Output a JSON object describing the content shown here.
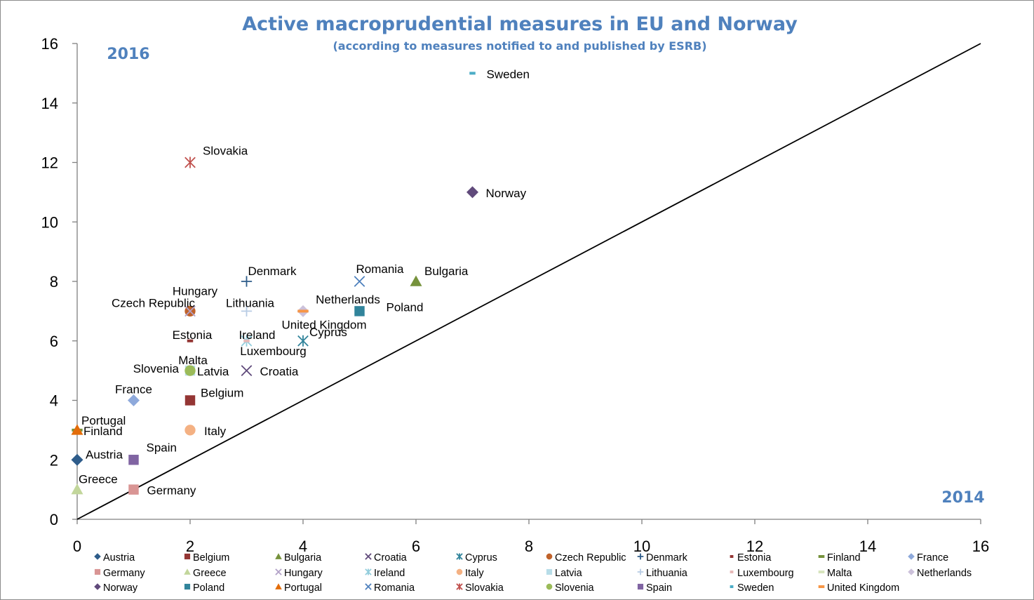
{
  "chart_data": {
    "type": "scatter",
    "title": "Active macroprudential measures in EU and Norway",
    "subtitle": "(according to measures notified to and published by ESRB)",
    "xlabel": "2014",
    "ylabel": "2016",
    "xlim": [
      0,
      16
    ],
    "ylim": [
      0,
      16
    ],
    "x_ticks": [
      "0",
      "2",
      "4",
      "6",
      "8",
      "10",
      "12",
      "14",
      "16"
    ],
    "y_ticks": [
      "0",
      "2",
      "4",
      "6",
      "8",
      "10",
      "12",
      "14",
      "16"
    ],
    "grid": false,
    "reference_line": "y = x",
    "legend_position": "bottom",
    "series": [
      {
        "name": "Austria",
        "x": 0,
        "y": 2,
        "marker": "diamond",
        "color": "#2e5c8a"
      },
      {
        "name": "Belgium",
        "x": 2,
        "y": 4,
        "marker": "square",
        "color": "#943634"
      },
      {
        "name": "Bulgaria",
        "x": 6,
        "y": 8,
        "marker": "triangle",
        "color": "#76923c"
      },
      {
        "name": "Croatia",
        "x": 3,
        "y": 5,
        "marker": "x",
        "color": "#604a7b"
      },
      {
        "name": "Cyprus",
        "x": 4,
        "y": 6,
        "marker": "star",
        "color": "#31849b"
      },
      {
        "name": "Czech Republic",
        "x": 2,
        "y": 7,
        "marker": "circle",
        "color": "#c0622a"
      },
      {
        "name": "Denmark",
        "x": 3,
        "y": 8,
        "marker": "plus",
        "color": "#2e5c8a"
      },
      {
        "name": "Estonia",
        "x": 2,
        "y": 6,
        "marker": "dash",
        "color": "#943634"
      },
      {
        "name": "Finland",
        "x": 0,
        "y": 3,
        "marker": "longdash",
        "color": "#76923c"
      },
      {
        "name": "France",
        "x": 1,
        "y": 4,
        "marker": "diamond",
        "color": "#8ea9db"
      },
      {
        "name": "Germany",
        "x": 1,
        "y": 1,
        "marker": "square",
        "color": "#d99594"
      },
      {
        "name": "Greece",
        "x": 0,
        "y": 1,
        "marker": "triangle",
        "color": "#c2d69b"
      },
      {
        "name": "Hungary",
        "x": 2,
        "y": 7,
        "marker": "x",
        "color": "#b2a1c7"
      },
      {
        "name": "Ireland",
        "x": 3,
        "y": 6,
        "marker": "star",
        "color": "#92cddc"
      },
      {
        "name": "Italy",
        "x": 2,
        "y": 3,
        "marker": "circle",
        "color": "#f4b183"
      },
      {
        "name": "Latvia",
        "x": 2,
        "y": 5,
        "marker": "square",
        "color": "#b7dde8"
      },
      {
        "name": "Lithuania",
        "x": 3,
        "y": 7,
        "marker": "plus",
        "color": "#b8cce4"
      },
      {
        "name": "Luxembourg",
        "x": 3,
        "y": 6,
        "marker": "dash",
        "color": "#e6b9b8"
      },
      {
        "name": "Malta",
        "x": 2,
        "y": 5,
        "marker": "longdash",
        "color": "#d7e4bd"
      },
      {
        "name": "Netherlands",
        "x": 4,
        "y": 7,
        "marker": "diamond",
        "color": "#ccc1da"
      },
      {
        "name": "Norway",
        "x": 7,
        "y": 11,
        "marker": "diamond",
        "color": "#604a7b"
      },
      {
        "name": "Poland",
        "x": 5,
        "y": 7,
        "marker": "square",
        "color": "#31849b"
      },
      {
        "name": "Portugal",
        "x": 0,
        "y": 3,
        "marker": "triangle",
        "color": "#e36c09"
      },
      {
        "name": "Romania",
        "x": 5,
        "y": 8,
        "marker": "x",
        "color": "#4f81bd"
      },
      {
        "name": "Slovakia",
        "x": 2,
        "y": 12,
        "marker": "star",
        "color": "#c0504d"
      },
      {
        "name": "Slovenia",
        "x": 2,
        "y": 5,
        "marker": "circle",
        "color": "#9bbb59"
      },
      {
        "name": "Spain",
        "x": 1,
        "y": 2,
        "marker": "square",
        "color": "#8064a2"
      },
      {
        "name": "Sweden",
        "x": 7,
        "y": 15,
        "marker": "dash",
        "color": "#4bacc6"
      },
      {
        "name": "United Kingdom",
        "x": 4,
        "y": 7,
        "marker": "longdash",
        "color": "#f79646"
      }
    ]
  }
}
